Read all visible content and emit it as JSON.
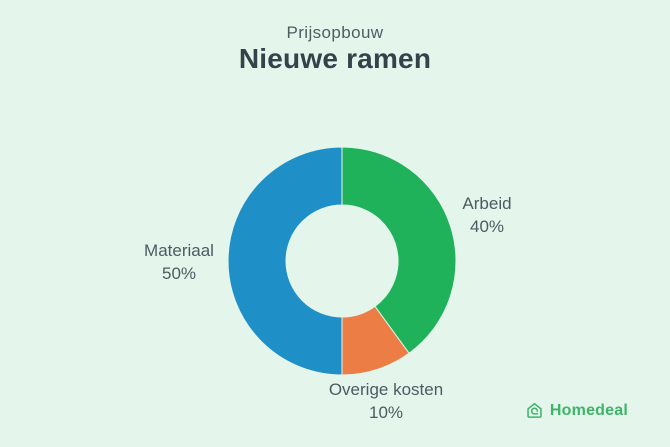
{
  "chart_data": {
    "type": "pie",
    "subtype": "donut",
    "suptitle": "Prijsopbouw",
    "title": "Nieuwe ramen",
    "categories": [
      "Arbeid",
      "Overige kosten",
      "Materiaal"
    ],
    "values": [
      40,
      10,
      50
    ],
    "unit": "%",
    "start_angle_deg": 0,
    "direction": "clockwise",
    "inner_radius_ratio": 0.49,
    "legend": "none",
    "label_placement": "around-slices",
    "slices": [
      {
        "label": "Arbeid",
        "value": 40,
        "display": "40%",
        "color": "#1fb25a"
      },
      {
        "label": "Overige kosten",
        "value": 10,
        "display": "10%",
        "color": "#ec7d44"
      },
      {
        "label": "Materiaal",
        "value": 50,
        "display": "50%",
        "color": "#1e8fc7"
      }
    ]
  },
  "footer": {
    "brand": "Homedeal"
  },
  "colors": {
    "background": "#e4f5ec",
    "title_text": "#33434a",
    "suptitle_text": "#4e5d64",
    "label_text": "#4c5b62",
    "brand_green": "#3eb469"
  }
}
